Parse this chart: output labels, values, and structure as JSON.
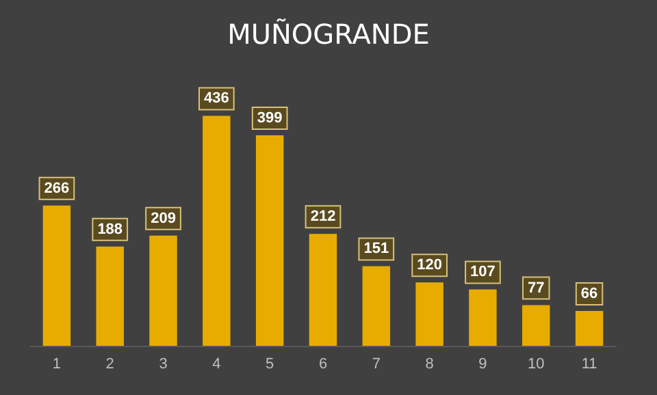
{
  "chart_data": {
    "type": "bar",
    "title": "MUÑOGRANDE",
    "categories": [
      "1",
      "2",
      "3",
      "4",
      "5",
      "6",
      "7",
      "8",
      "9",
      "10",
      "11"
    ],
    "series": [
      {
        "color": "#e8ac00",
        "values": [
          266,
          188,
          209,
          436,
          399,
          212,
          151,
          120,
          107,
          77,
          66
        ]
      }
    ],
    "data_labels": true
  }
}
